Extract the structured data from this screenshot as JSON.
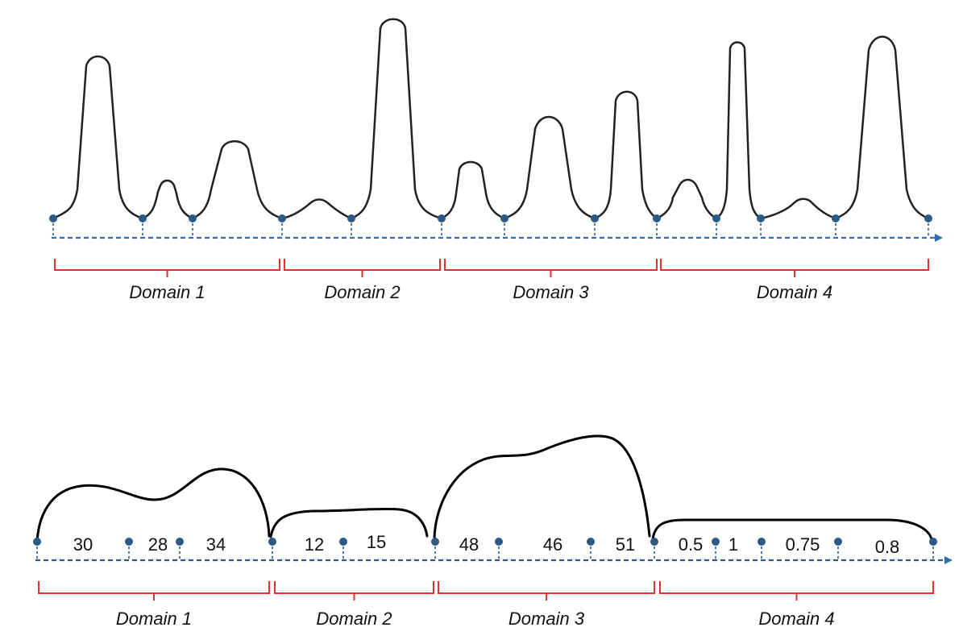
{
  "colors": {
    "axis": "#2e6db4",
    "marker": "#2b5a84",
    "bracket": "#e03030",
    "curve": "#222222",
    "text": "#111111"
  },
  "top": {
    "domains": [
      {
        "label": "Domain 1"
      },
      {
        "label": "Domain 2"
      },
      {
        "label": "Domain 3"
      },
      {
        "label": "Domain 4"
      }
    ]
  },
  "bottom": {
    "domains": [
      {
        "label": "Domain 1"
      },
      {
        "label": "Domain 2"
      },
      {
        "label": "Domain 3"
      },
      {
        "label": "Domain 4"
      }
    ],
    "values": [
      "30",
      "28",
      "34",
      "12",
      "15",
      "48",
      "46",
      "51",
      "0.5",
      "1",
      "0.75",
      "0.8"
    ]
  }
}
